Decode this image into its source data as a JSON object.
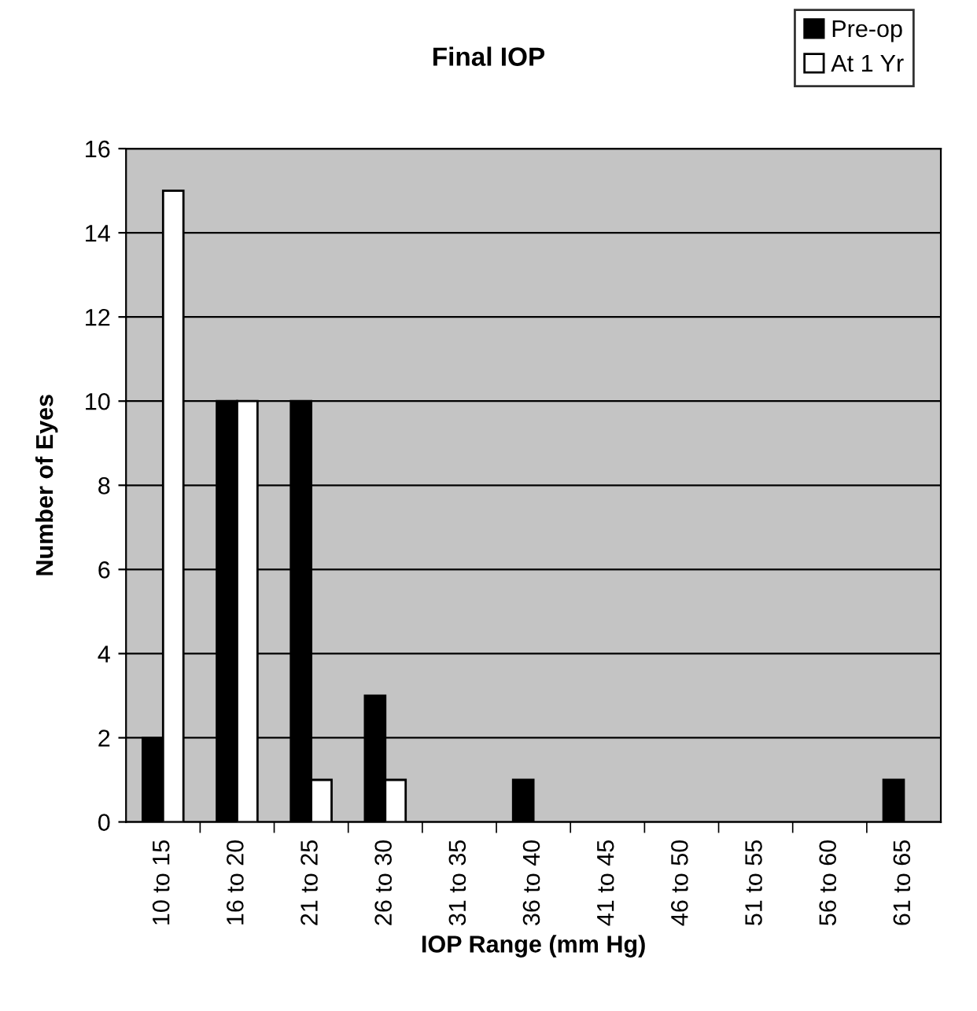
{
  "chart_data": {
    "type": "bar",
    "title": "Final IOP",
    "xlabel": "IOP Range (mm Hg)",
    "ylabel": "Number of Eyes",
    "categories": [
      "10 to 15",
      "16 to 20",
      "21 to 25",
      "26 to 30",
      "31 to 35",
      "36 to 40",
      "41 to 45",
      "46 to 50",
      "51 to 55",
      "56 to 60",
      "61 to 65"
    ],
    "series": [
      {
        "name": "Pre-op",
        "color": "#000000",
        "values": [
          2,
          10,
          10,
          3,
          0,
          1,
          0,
          0,
          0,
          0,
          1
        ]
      },
      {
        "name": "At 1 Yr",
        "color": "#ffffff",
        "values": [
          15,
          10,
          1,
          1,
          0,
          0,
          0,
          0,
          0,
          0,
          0
        ]
      }
    ],
    "ylim": [
      0,
      16
    ],
    "yticks": [
      0,
      2,
      4,
      6,
      8,
      10,
      12,
      14,
      16
    ],
    "grid": "y",
    "legend": "top right"
  }
}
